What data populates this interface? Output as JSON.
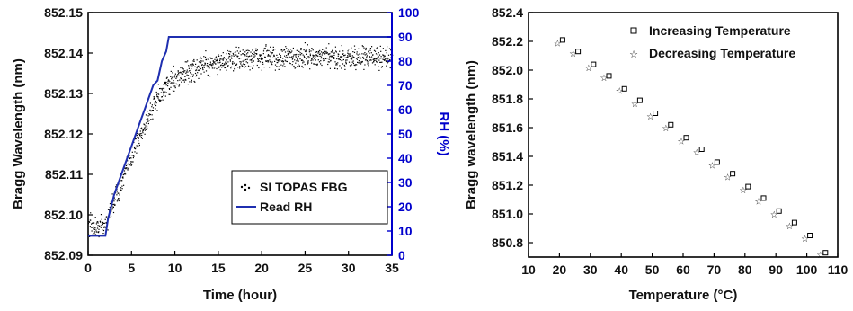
{
  "chart_data": [
    {
      "type": "scatter",
      "xlabel": "Time (hour)",
      "ylabel": "Bragg Wavelength (nm)",
      "y2label": "RH (%)",
      "xlim": [
        0,
        35
      ],
      "ylim": [
        852.09,
        852.15
      ],
      "y2lim": [
        0,
        100
      ],
      "xticks": [
        "0",
        "5",
        "10",
        "15",
        "20",
        "25",
        "30",
        "35"
      ],
      "yticks": [
        "852.09",
        "852.10",
        "852.11",
        "852.12",
        "852.13",
        "852.14",
        "852.15"
      ],
      "y2ticks": [
        "0",
        "10",
        "20",
        "30",
        "40",
        "50",
        "60",
        "70",
        "80",
        "90",
        "100"
      ],
      "legend_position": "center-right",
      "colors": {
        "left_axis": "#000000",
        "right_axis": "#0000cc",
        "rh_line": "#1f2fb0",
        "fbg_points": "#000000"
      },
      "series": [
        {
          "name": "SI TOPAS FBG",
          "style": "points",
          "axis": "left",
          "x": [
            0,
            1,
            2,
            2.5,
            3,
            4,
            5,
            6,
            7,
            8,
            9,
            10,
            11,
            12,
            13,
            15,
            17,
            20,
            25,
            30,
            35
          ],
          "y": [
            852.097,
            852.097,
            852.098,
            852.101,
            852.104,
            852.109,
            852.115,
            852.12,
            852.125,
            852.129,
            852.132,
            852.134,
            852.135,
            852.136,
            852.137,
            852.138,
            852.1385,
            852.139,
            852.139,
            852.139,
            852.139
          ],
          "spread": 0.004
        },
        {
          "name": "Read RH",
          "style": "line",
          "axis": "right",
          "x": [
            0,
            2,
            2.3,
            3,
            4,
            5,
            6,
            6.5,
            7,
            7.5,
            8,
            8.5,
            9,
            9.3,
            35
          ],
          "y": [
            8,
            8,
            15,
            25,
            35,
            45,
            55,
            60,
            65,
            70,
            72,
            80,
            84,
            90,
            90
          ]
        }
      ]
    },
    {
      "type": "scatter",
      "xlabel": "Temperature (°C)",
      "ylabel": "Bragg wavelength (nm)",
      "xlim": [
        10,
        110
      ],
      "ylim": [
        850.7,
        852.4
      ],
      "xticks": [
        "10",
        "20",
        "30",
        "40",
        "50",
        "60",
        "70",
        "80",
        "90",
        "100",
        "110"
      ],
      "yticks": [
        "850.8",
        "851.0",
        "851.2",
        "851.4",
        "851.6",
        "851.8",
        "852.0",
        "852.2",
        "852.4"
      ],
      "legend_position": "top-right",
      "series": [
        {
          "name": "Increasing Temperature",
          "marker": "square",
          "x": [
            20,
            25,
            30,
            35,
            40,
            45,
            50,
            55,
            60,
            65,
            70,
            75,
            80,
            85,
            90,
            95,
            100,
            105
          ],
          "y": [
            852.21,
            852.13,
            852.04,
            851.96,
            851.87,
            851.79,
            851.7,
            851.62,
            851.53,
            851.45,
            851.36,
            851.28,
            851.19,
            851.11,
            851.02,
            850.94,
            850.85,
            850.73
          ]
        },
        {
          "name": "Decreasing Temperature",
          "marker": "star",
          "x": [
            20,
            25,
            30,
            35,
            40,
            45,
            50,
            55,
            60,
            65,
            70,
            75,
            80,
            85,
            90,
            95,
            100,
            105
          ],
          "y": [
            852.19,
            852.12,
            852.02,
            851.95,
            851.86,
            851.77,
            851.68,
            851.6,
            851.51,
            851.43,
            851.34,
            851.26,
            851.17,
            851.09,
            851.0,
            850.92,
            850.83,
            850.72
          ]
        }
      ]
    }
  ]
}
